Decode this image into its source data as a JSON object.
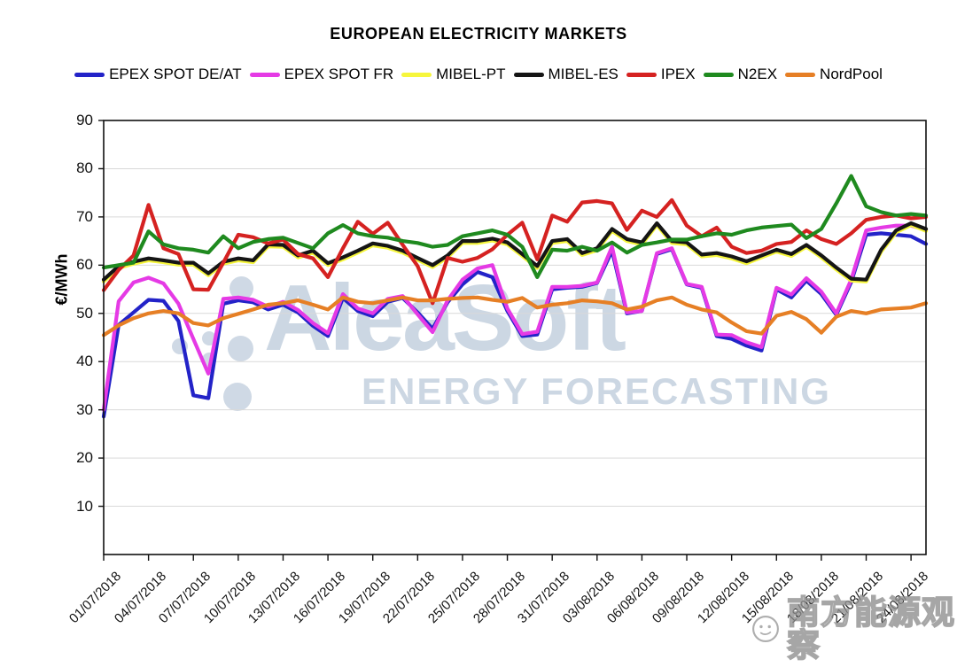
{
  "chart": {
    "title": "EUROPEAN ELECTRICITY MARKETS"
  },
  "axes": {
    "y_unit": "€/MWh",
    "y_tick_labels": [
      90,
      80,
      70,
      60,
      50,
      40,
      30,
      20,
      10
    ]
  },
  "watermark": {
    "brand": "AleaSoft",
    "tagline": "ENERGY FORECASTING"
  },
  "watermark_cn": {
    "text": "南方能源观察",
    "icon": "wechat-account-logo"
  },
  "chart_data": {
    "type": "line",
    "title": "EUROPEAN ELECTRICITY MARKETS",
    "xlabel": "",
    "ylabel": "€/MWh",
    "ylim": [
      0,
      90
    ],
    "grid": true,
    "legend_position": "top",
    "x_start_date": "01/07/2018",
    "x_end_date": "25/08/2018",
    "x_tick_every_days": 3,
    "x_tick_labels": [
      "01/07/2018",
      "04/07/2018",
      "07/07/2018",
      "10/07/2018",
      "13/07/2018",
      "16/07/2018",
      "19/07/2018",
      "22/07/2018",
      "25/07/2018",
      "28/07/2018",
      "31/07/2018",
      "03/08/2018",
      "06/08/2018",
      "09/08/2018",
      "12/08/2018",
      "15/08/2018",
      "18/08/2018",
      "21/08/2018",
      "24/08/2018"
    ],
    "series": [
      {
        "name": "EPEX SPOT DE/AT",
        "color": "#2323c8",
        "values": [
          28.6,
          47.6,
          50.2,
          52.8,
          52.6,
          48.4,
          33,
          32.4,
          52,
          52.7,
          52.3,
          50.8,
          51.8,
          50.2,
          47.4,
          45.3,
          53.2,
          50.5,
          49.4,
          52.4,
          53.2,
          50.2,
          46.8,
          52.3,
          56,
          58.6,
          57.5,
          50.5,
          45.3,
          45.6,
          55,
          55.3,
          55.5,
          56.3,
          63,
          50,
          50.5,
          62.3,
          63.3,
          56,
          55.3,
          45.3,
          44.7,
          43.3,
          42.3,
          55,
          53.3,
          56.8,
          54,
          49.7,
          56.5,
          66.3,
          66.6,
          66.3,
          66,
          64.4
        ]
      },
      {
        "name": "EPEX SPOT FR",
        "color": "#e53ae5",
        "values": [
          30,
          52.5,
          56.4,
          57.4,
          56.2,
          52,
          44.7,
          37.5,
          53,
          53.3,
          52.8,
          51.4,
          52.4,
          50.7,
          48,
          45.9,
          54,
          51,
          50,
          53,
          53.6,
          49.8,
          46.1,
          52.7,
          57,
          59.3,
          60,
          51,
          45.7,
          46.2,
          55.5,
          55.5,
          55.7,
          56.4,
          63.8,
          50.2,
          50.5,
          62.5,
          63.5,
          56.1,
          55.5,
          45.6,
          45.5,
          44,
          43,
          55.3,
          53.9,
          57.3,
          54.5,
          50,
          57,
          67.2,
          67.8,
          68.2,
          68.2,
          67.3
        ]
      },
      {
        "name": "MIBEL-PT",
        "color": "#f6f63c",
        "values": [
          56.6,
          59.4,
          60.3,
          61,
          60.6,
          60.1,
          60.1,
          57.9,
          60.3,
          61,
          60.6,
          63.9,
          63.8,
          61.6,
          62.6,
          60,
          61.2,
          62.6,
          64.1,
          63.6,
          62.6,
          61.1,
          59.6,
          61.6,
          64.6,
          64.6,
          65.1,
          64.3,
          61.9,
          59.4,
          64.6,
          65,
          62.1,
          63.1,
          67.1,
          65,
          64.3,
          68.3,
          64.6,
          64.3,
          61.8,
          62.1,
          61.4,
          60.4,
          61.6,
          62.8,
          61.9,
          63.8,
          61.6,
          59.1,
          56.8,
          56.6,
          62.8,
          66.8,
          68.3,
          67.1
        ]
      },
      {
        "name": "MIBEL-ES",
        "color": "#151515",
        "values": [
          57,
          59.8,
          60.7,
          61.4,
          61,
          60.5,
          60.5,
          58.3,
          60.7,
          61.4,
          61,
          64.3,
          64.2,
          62,
          63,
          60.4,
          61.6,
          63,
          64.5,
          64,
          63,
          61.5,
          60,
          62,
          65,
          65,
          65.5,
          64.7,
          62.3,
          59.8,
          65,
          65.4,
          62.5,
          63.5,
          67.5,
          65.4,
          64.7,
          68.7,
          65,
          64.7,
          62.2,
          62.5,
          61.8,
          60.8,
          62,
          63.2,
          62.3,
          64.2,
          62,
          59.5,
          57.2,
          57,
          63.2,
          67.2,
          68.7,
          67.5
        ]
      },
      {
        "name": "IPEX",
        "color": "#d52221",
        "values": [
          54.8,
          59,
          62,
          72.5,
          63.5,
          62.3,
          55,
          54.9,
          60.5,
          66.3,
          65.8,
          64.5,
          65.3,
          62.3,
          61.4,
          57.5,
          63.5,
          69,
          66.5,
          68.8,
          64.2,
          59.8,
          52.1,
          61.5,
          60.7,
          61.5,
          63.3,
          66.3,
          68.8,
          61.2,
          70.3,
          69,
          73,
          73.3,
          72.8,
          67.3,
          71.3,
          70,
          73.5,
          68.2,
          66,
          67.8,
          63.8,
          62.5,
          63,
          64.4,
          64.8,
          67.2,
          65.4,
          64.4,
          66.6,
          69.4,
          70,
          70.3,
          69.7,
          70
        ]
      },
      {
        "name": "N2EX",
        "color": "#1f8a1f",
        "values": [
          59.5,
          60,
          60.5,
          67,
          64.3,
          63.5,
          63.2,
          62.6,
          66,
          63.5,
          64.8,
          65.4,
          65.7,
          64.6,
          63.5,
          66.6,
          68.3,
          66.6,
          66,
          65.7,
          65,
          64.6,
          63.8,
          64.2,
          66,
          66.6,
          67.2,
          66.3,
          63.8,
          57.5,
          63.2,
          63,
          63.8,
          63,
          64.7,
          62.6,
          64.2,
          64.7,
          65.3,
          65.3,
          66,
          66.6,
          66.3,
          67.2,
          67.8,
          68.1,
          68.4,
          65.6,
          67.5,
          72.8,
          78.5,
          72.2,
          71,
          70.3,
          70.6,
          70.3
        ]
      },
      {
        "name": "NordPool",
        "color": "#e67f25",
        "values": [
          45.5,
          47.5,
          49,
          50,
          50.5,
          50,
          48,
          47.5,
          49,
          49.9,
          50.8,
          51.8,
          52.1,
          52.7,
          51.8,
          50.8,
          53.3,
          52.4,
          52.1,
          52.7,
          53.3,
          52.7,
          52.7,
          53,
          53.2,
          53.3,
          52.8,
          52.4,
          53.2,
          51.2,
          51.8,
          52.1,
          52.7,
          52.5,
          52.1,
          50.8,
          51.4,
          52.7,
          53.3,
          51.8,
          50.8,
          50.2,
          48.1,
          46.3,
          45.8,
          49.5,
          50.3,
          48.8,
          46,
          49.3,
          50.5,
          50,
          50.8,
          51,
          51.2,
          52.1
        ]
      }
    ]
  }
}
